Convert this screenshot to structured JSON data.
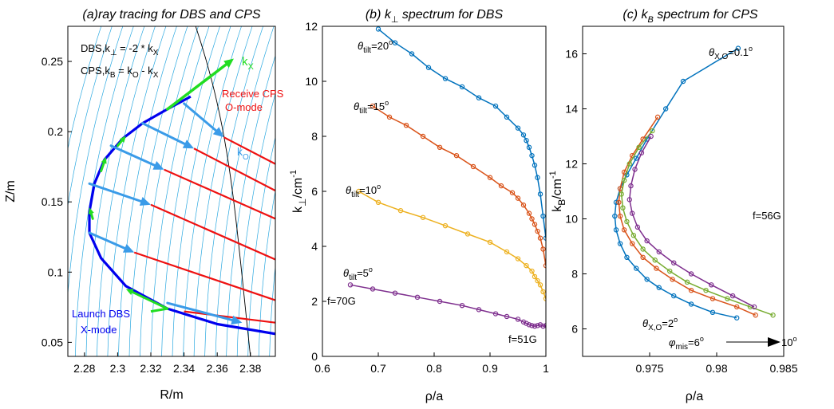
{
  "colors": {
    "blue": "#0072BD",
    "orange": "#D95319",
    "yellow": "#EDB120",
    "purple": "#7E2F8E",
    "green": "#77AC30",
    "ray": "#0000EE",
    "kx": "#22DD22",
    "ko": "#3A9BE8",
    "cps": "#EE1111",
    "flux": "#2AA8E0"
  },
  "chart_data": [
    {
      "type": "line",
      "title": "(a)ray tracing for DBS and CPS",
      "xlabel": "R/m",
      "ylabel": "Z/m",
      "xlim": [
        2.27,
        2.395
      ],
      "ylim": [
        0.04,
        0.275
      ],
      "xticks": [
        "2.28",
        "2.3",
        "2.32",
        "2.34",
        "2.36",
        "2.38"
      ],
      "yticks": [
        "0.05",
        "0.1",
        "0.15",
        "0.2",
        "0.25"
      ],
      "annotations": {
        "dbs_rel_prefix": "DBS,k",
        "dbs_rel_sub1": "⊥",
        "dbs_rel_mid": " = -2 * k",
        "dbs_rel_sub2": "X",
        "cps_rel_prefix": "CPS,k",
        "cps_rel_sub1": "B",
        "cps_rel_mid": " = k",
        "cps_rel_sub2": "O",
        "cps_rel_mid2": " - k",
        "cps_rel_sub3": "X",
        "receive_1": "Receive CPS",
        "receive_2": "O-mode",
        "launch_1": "Launch DBS",
        "launch_2": "X-mode",
        "kx_main": "k",
        "kx_sub": "X",
        "ko_main": "k",
        "ko_sub": "O"
      },
      "ray_path": [
        [
          2.395,
          0.056
        ],
        [
          2.36,
          0.063
        ],
        [
          2.33,
          0.074
        ],
        [
          2.305,
          0.09
        ],
        [
          2.29,
          0.11
        ],
        [
          2.283,
          0.128
        ],
        [
          2.283,
          0.143
        ],
        [
          2.286,
          0.163
        ],
        [
          2.292,
          0.18
        ],
        [
          2.303,
          0.195
        ],
        [
          2.315,
          0.206
        ],
        [
          2.33,
          0.216
        ],
        [
          2.344,
          0.225
        ],
        [
          2.37,
          0.252
        ]
      ],
      "ko_arrows": [
        [
          [
            2.283,
            0.128
          ],
          [
            2.31,
            0.114
          ]
        ],
        [
          [
            2.283,
            0.163
          ],
          [
            2.32,
            0.148
          ]
        ],
        [
          [
            2.296,
            0.19
          ],
          [
            2.328,
            0.173
          ]
        ],
        [
          [
            2.315,
            0.206
          ],
          [
            2.346,
            0.188
          ]
        ],
        [
          [
            2.34,
            0.22
          ],
          [
            2.364,
            0.196
          ]
        ],
        [
          [
            2.33,
            0.078
          ],
          [
            2.375,
            0.064
          ]
        ]
      ],
      "cps_rays": [
        [
          [
            2.31,
            0.114
          ],
          [
            2.395,
            0.08
          ]
        ],
        [
          [
            2.32,
            0.148
          ],
          [
            2.395,
            0.109
          ]
        ],
        [
          [
            2.328,
            0.173
          ],
          [
            2.395,
            0.138
          ]
        ],
        [
          [
            2.346,
            0.188
          ],
          [
            2.395,
            0.158
          ]
        ],
        [
          [
            2.364,
            0.196
          ],
          [
            2.395,
            0.177
          ]
        ],
        [
          [
            2.34,
            0.072
          ],
          [
            2.395,
            0.064
          ]
        ]
      ]
    },
    {
      "type": "line",
      "title_main": "(b) k",
      "title_sub": "⊥",
      "title_tail": " spectrum for DBS",
      "xlabel": "ρ/a",
      "ylabel_main": "k",
      "ylabel_sub": "⊥",
      "ylabel_tail": "/cm",
      "ylabel_sup": "-1",
      "xlim": [
        0.6,
        1.0
      ],
      "ylim": [
        0,
        12
      ],
      "xticks": [
        "0.6",
        "0.7",
        "0.8",
        "0.9",
        "1"
      ],
      "yticks": [
        "0",
        "2",
        "4",
        "6",
        "8",
        "10",
        "12"
      ],
      "annotations": {
        "th_main": "θ",
        "th_sub": "tilt",
        "deg": "o",
        "t20": "=20",
        "t15": "=15",
        "t10": "=10",
        "t5": "=5",
        "f70": "f=70G",
        "f51": "f=51G"
      },
      "series": [
        {
          "x": [
            0.7,
            0.73,
            0.76,
            0.79,
            0.82,
            0.85,
            0.88,
            0.91,
            0.93,
            0.95,
            0.96,
            0.965,
            0.97,
            0.975,
            0.98,
            0.985,
            0.99,
            0.995,
            1.0
          ],
          "y": [
            11.9,
            11.4,
            11.0,
            10.5,
            10.1,
            9.8,
            9.4,
            9.1,
            8.7,
            8.3,
            8.05,
            7.85,
            7.6,
            7.3,
            6.95,
            6.5,
            5.9,
            5.1,
            4.3
          ]
        },
        {
          "x": [
            0.69,
            0.72,
            0.75,
            0.78,
            0.81,
            0.84,
            0.87,
            0.9,
            0.92,
            0.94,
            0.95,
            0.96,
            0.97,
            0.975,
            0.98,
            0.985,
            0.99,
            0.995,
            1.0
          ],
          "y": [
            9.1,
            8.7,
            8.4,
            8.0,
            7.6,
            7.3,
            6.9,
            6.5,
            6.2,
            5.95,
            5.75,
            5.5,
            5.2,
            5.0,
            4.8,
            4.55,
            4.3,
            3.9,
            3.3
          ]
        },
        {
          "x": [
            0.665,
            0.7,
            0.74,
            0.78,
            0.82,
            0.86,
            0.9,
            0.93,
            0.95,
            0.965,
            0.975,
            0.98,
            0.985,
            0.99,
            0.995,
            1.0
          ],
          "y": [
            6.0,
            5.6,
            5.3,
            5.05,
            4.75,
            4.45,
            4.15,
            3.8,
            3.55,
            3.3,
            3.1,
            2.9,
            2.75,
            2.6,
            2.35,
            2.1
          ]
        },
        {
          "x": [
            0.65,
            0.69,
            0.73,
            0.77,
            0.81,
            0.85,
            0.88,
            0.91,
            0.93,
            0.95,
            0.96,
            0.965,
            0.97,
            0.975,
            0.98,
            0.985,
            0.99,
            0.995,
            1.0
          ],
          "y": [
            2.6,
            2.45,
            2.3,
            2.15,
            2.0,
            1.85,
            1.7,
            1.55,
            1.45,
            1.35,
            1.25,
            1.2,
            1.15,
            1.12,
            1.1,
            1.12,
            1.15,
            1.1,
            1.12
          ]
        }
      ]
    },
    {
      "type": "line",
      "title_main": "(c) k",
      "title_sub": "B",
      "title_tail": " spectrum for CPS",
      "xlabel": "ρ/a",
      "ylabel_main": "k",
      "ylabel_sub": "B",
      "ylabel_tail": "/cm",
      "ylabel_sup": "-1",
      "xlim": [
        0.97,
        0.985
      ],
      "ylim": [
        5,
        17
      ],
      "xticks": [
        "0.975",
        "0.98",
        "0.985"
      ],
      "yticks": [
        "6",
        "8",
        "10",
        "12",
        "14",
        "16"
      ],
      "annotations": {
        "th_main": "θ",
        "th_sub": "X,O",
        "deg": "o",
        "t01": "=0.1",
        "t2": "=2",
        "f56": "f=56G",
        "phi_main": "φ",
        "phi_sub": "mis",
        "phi_eq": "=6",
        "phi_end": "10"
      },
      "series": [
        {
          "x": [
            0.9816,
            0.9775,
            0.9762,
            0.9748,
            0.974,
            0.9733,
            0.9728,
            0.9725,
            0.9724,
            0.9725,
            0.9728,
            0.9733,
            0.974,
            0.9748,
            0.9757,
            0.9768,
            0.9781,
            0.9797,
            0.9815
          ],
          "y": [
            16.2,
            15.0,
            14.0,
            12.9,
            12.2,
            11.6,
            11.1,
            10.6,
            10.1,
            9.6,
            9.1,
            8.6,
            8.2,
            7.8,
            7.5,
            7.2,
            6.9,
            6.6,
            6.4
          ]
        },
        {
          "x": [
            0.9756,
            0.9745,
            0.9737,
            0.9731,
            0.9728,
            0.9727,
            0.9728,
            0.9731,
            0.9737,
            0.9745,
            0.9755,
            0.9767,
            0.9781,
            0.9797,
            0.9815,
            0.9829
          ],
          "y": [
            13.7,
            12.9,
            12.3,
            11.7,
            11.1,
            10.6,
            10.1,
            9.6,
            9.1,
            8.6,
            8.2,
            7.8,
            7.4,
            7.1,
            6.8,
            6.5
          ]
        },
        {
          "x": [
            0.9752,
            0.9742,
            0.9735,
            0.9731,
            0.9729,
            0.973,
            0.9733,
            0.9738,
            0.9745,
            0.9754,
            0.9765,
            0.9778,
            0.9792,
            0.9808,
            0.9825,
            0.9842
          ],
          "y": [
            13.2,
            12.6,
            12.0,
            11.4,
            10.9,
            10.4,
            9.9,
            9.4,
            8.9,
            8.5,
            8.1,
            7.7,
            7.4,
            7.1,
            6.8,
            6.5
          ]
        },
        {
          "x": [
            0.9751,
            0.9744,
            0.9739,
            0.9736,
            0.9735,
            0.9737,
            0.9741,
            0.9748,
            0.9757,
            0.9768,
            0.9781,
            0.9796,
            0.9812,
            0.9828
          ],
          "y": [
            13.0,
            12.4,
            11.8,
            11.2,
            10.7,
            10.2,
            9.7,
            9.2,
            8.8,
            8.4,
            8.0,
            7.6,
            7.2,
            6.8
          ]
        }
      ]
    }
  ]
}
